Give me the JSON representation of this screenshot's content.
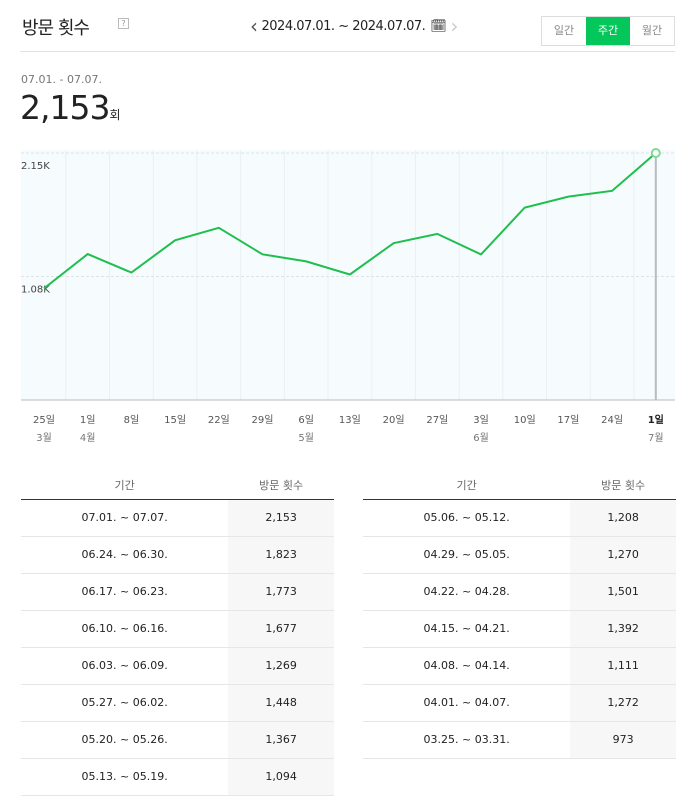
{
  "header": {
    "title": "방문 횟수",
    "help_icon": "?",
    "date_range": "2024.07.01. ~ 2024.07.07.",
    "period_tabs": [
      {
        "label": "일간",
        "active": false
      },
      {
        "label": "주간",
        "active": true
      },
      {
        "label": "월간",
        "active": false
      }
    ]
  },
  "summary": {
    "range": "07.01. - 07.07.",
    "value": "2,153",
    "unit": "회"
  },
  "colors": {
    "accent": "#03c75a",
    "line": "#1fbf4d"
  },
  "chart_data": {
    "type": "line",
    "y_ticks": [
      "2.15K",
      "1.08K"
    ],
    "x_labels": [
      "25일",
      "1일",
      "8일",
      "15일",
      "22일",
      "29일",
      "6일",
      "13일",
      "20일",
      "27일",
      "3일",
      "10일",
      "17일",
      "24일",
      "1일"
    ],
    "month_labels": [
      "3월",
      "4월",
      "",
      "",
      "",
      "",
      "5월",
      "",
      "",
      "",
      "6월",
      "",
      "",
      "",
      "7월"
    ],
    "x": [
      "03.25",
      "04.01",
      "04.08",
      "04.15",
      "04.22",
      "04.29",
      "05.06",
      "05.13",
      "05.20",
      "05.27",
      "06.03",
      "06.10",
      "06.17",
      "06.24",
      "07.01"
    ],
    "values": [
      973,
      1272,
      1111,
      1392,
      1501,
      1270,
      1208,
      1094,
      1367,
      1448,
      1269,
      1677,
      1773,
      1823,
      2153
    ],
    "ylim": [
      0,
      2153
    ],
    "grid": true,
    "highlighted_index": 14
  },
  "table": {
    "headers": [
      "기간",
      "방문 횟수"
    ],
    "left": [
      [
        "07.01. ~ 07.07.",
        "2,153"
      ],
      [
        "06.24. ~ 06.30.",
        "1,823"
      ],
      [
        "06.17. ~ 06.23.",
        "1,773"
      ],
      [
        "06.10. ~ 06.16.",
        "1,677"
      ],
      [
        "06.03. ~ 06.09.",
        "1,269"
      ],
      [
        "05.27. ~ 06.02.",
        "1,448"
      ],
      [
        "05.20. ~ 05.26.",
        "1,367"
      ],
      [
        "05.13. ~ 05.19.",
        "1,094"
      ]
    ],
    "right": [
      [
        "05.06. ~ 05.12.",
        "1,208"
      ],
      [
        "04.29. ~ 05.05.",
        "1,270"
      ],
      [
        "04.22. ~ 04.28.",
        "1,501"
      ],
      [
        "04.15. ~ 04.21.",
        "1,392"
      ],
      [
        "04.08. ~ 04.14.",
        "1,111"
      ],
      [
        "04.01. ~ 04.07.",
        "1,272"
      ],
      [
        "03.25. ~ 03.31.",
        "973"
      ]
    ]
  }
}
